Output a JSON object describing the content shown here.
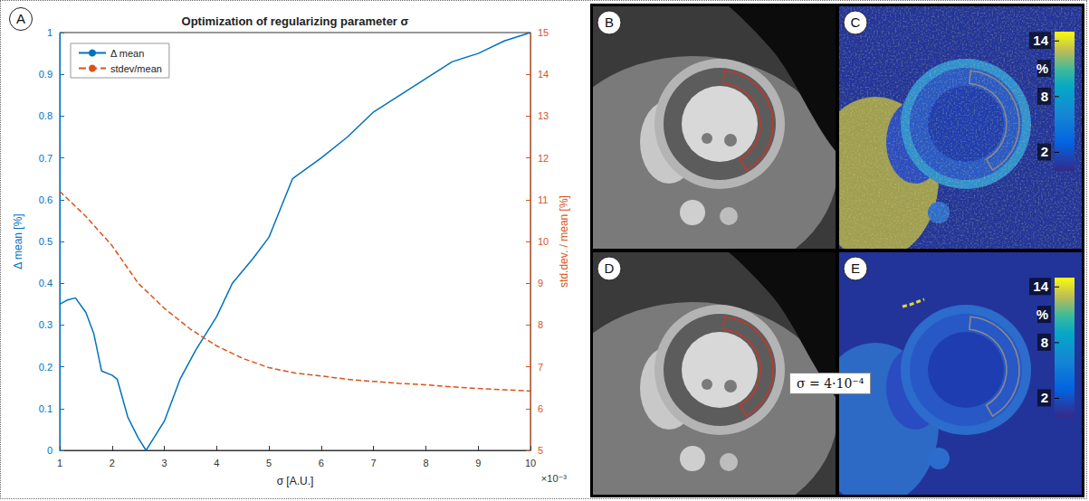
{
  "chart_data": {
    "type": "line",
    "title": "Optimization of regularizing parameter σ",
    "x_label": "σ [A.U.]",
    "y_label": "Δ mean [%]",
    "y2_label": "std.dev. / mean [%]",
    "annotations": [
      "×10⁻³"
    ],
    "xlim": [
      1,
      10
    ],
    "xticks": [
      1,
      2,
      3,
      4,
      5,
      6,
      7,
      8,
      9,
      10
    ],
    "ylim": [
      0,
      1
    ],
    "yticks": [
      0,
      0.1,
      0.2,
      0.3,
      0.4,
      0.5,
      0.6,
      0.7,
      0.8,
      0.9,
      1
    ],
    "y2lim": [
      5,
      15
    ],
    "y2ticks": [
      5,
      6,
      7,
      8,
      9,
      10,
      11,
      12,
      13,
      14,
      15
    ],
    "grid": false,
    "legend": "upper left",
    "series": [
      {
        "name": "Δ mean",
        "color": "#0072bd",
        "line_style": "solid",
        "x": [
          1,
          1.15,
          1.3,
          1.5,
          1.65,
          1.8,
          2.0,
          2.1,
          2.3,
          2.5,
          2.65,
          2.8,
          3.0,
          3.3,
          3.6,
          4.0,
          4.3,
          4.7,
          5.0,
          5.45,
          6.0,
          6.5,
          7.0,
          7.5,
          8.0,
          8.5,
          9.0,
          9.5,
          10
        ],
        "values": [
          0.35,
          0.36,
          0.365,
          0.33,
          0.28,
          0.19,
          0.18,
          0.17,
          0.08,
          0.03,
          0.0,
          0.03,
          0.07,
          0.17,
          0.24,
          0.32,
          0.4,
          0.46,
          0.51,
          0.65,
          0.7,
          0.75,
          0.81,
          0.85,
          0.89,
          0.93,
          0.95,
          0.98,
          1.0
        ]
      },
      {
        "name": "stdev/mean",
        "color": "#d95319",
        "line_style": "dashed",
        "axis": "y2",
        "x": [
          1,
          1.5,
          2,
          2.5,
          3,
          3.5,
          4,
          4.5,
          5,
          5.5,
          6,
          6.5,
          7,
          7.5,
          8,
          8.5,
          9,
          9.5,
          10
        ],
        "values": [
          11.2,
          10.6,
          9.9,
          9.0,
          8.4,
          7.9,
          7.5,
          7.2,
          6.98,
          6.85,
          6.78,
          6.7,
          6.65,
          6.6,
          6.57,
          6.52,
          6.48,
          6.45,
          6.42
        ]
      }
    ]
  },
  "panel_label": "A",
  "image_panels": [
    {
      "label": "B"
    },
    {
      "label": "C",
      "colorbar": {
        "label": "%",
        "range": [
          0,
          15
        ],
        "ticks": [
          14,
          8,
          2
        ]
      }
    },
    {
      "label": "D"
    },
    {
      "label": "E",
      "colorbar": {
        "label": "%",
        "range": [
          0,
          15
        ],
        "ticks": [
          14,
          8,
          2
        ]
      }
    }
  ],
  "annotation": "σ = 4·10⁻⁴"
}
